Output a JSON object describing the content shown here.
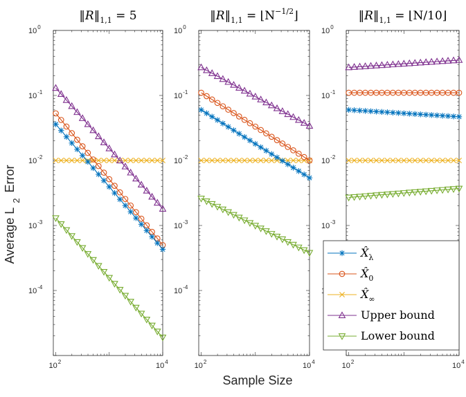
{
  "chart_data": {
    "type": "line",
    "xlabel": "Sample Size",
    "ylabel_main": "Average L",
    "ylabel_sub": "2",
    "ylabel_end": "Error",
    "x_log": true,
    "y_log": true,
    "xlim": [
      90,
      10000
    ],
    "ylim": [
      1e-05,
      1
    ],
    "x_ticks": [
      {
        "value": 100,
        "base": "10",
        "exp": "2"
      },
      {
        "value": 10000,
        "base": "10",
        "exp": "4"
      }
    ],
    "y_ticks": [
      {
        "value": 1,
        "base": "10",
        "exp": "0"
      },
      {
        "value": 0.1,
        "base": "10",
        "exp": "-1"
      },
      {
        "value": 0.01,
        "base": "10",
        "exp": "-2"
      },
      {
        "value": 0.001,
        "base": "10",
        "exp": "-3"
      },
      {
        "value": 0.0001,
        "base": "10",
        "exp": "-4"
      }
    ],
    "colors": {
      "x_lambda": "#0072BD",
      "x_0": "#D95319",
      "x_inf": "#EDB120",
      "upper": "#7E2F8E",
      "lower": "#77AC30"
    },
    "legend": [
      {
        "key": "x_lambda",
        "label": "X̂",
        "sub": "λ",
        "marker": "star"
      },
      {
        "key": "x_0",
        "label": "X̂",
        "sub": "0",
        "marker": "circle"
      },
      {
        "key": "x_inf",
        "label": "X̂",
        "sub": "∞",
        "marker": "x"
      },
      {
        "key": "upper",
        "label": "Upper bound",
        "sub": "",
        "marker": "triangle-up"
      },
      {
        "key": "lower",
        "label": "Lower bound",
        "sub": "",
        "marker": "triangle-down"
      }
    ],
    "panels": [
      {
        "title_a": "‖R‖",
        "title_sub": "1,1",
        "title_b": " = 5",
        "title_sup": "",
        "title_c": "",
        "series": {
          "x_lambda": {
            "start": 0.036,
            "end": 0.00043
          },
          "x_0": {
            "start": 0.053,
            "end": 0.0005
          },
          "x_inf": {
            "start": 0.01,
            "end": 0.01
          },
          "upper": {
            "start": 0.13,
            "end": 0.0018
          },
          "lower": {
            "start": 0.0013,
            "end": 1.9e-05
          }
        }
      },
      {
        "title_a": "‖R‖",
        "title_sub": "1,1",
        "title_b": " = ⌊N",
        "title_sup": "−1/2",
        "title_c": "⌋",
        "series": {
          "x_lambda": {
            "start": 0.06,
            "end": 0.0054
          },
          "x_0": {
            "start": 0.11,
            "end": 0.01
          },
          "x_inf": {
            "start": 0.01,
            "end": 0.01
          },
          "upper": {
            "start": 0.27,
            "end": 0.034
          },
          "lower": {
            "start": 0.0026,
            "end": 0.00038
          }
        }
      },
      {
        "title_a": "‖R‖",
        "title_sub": "1,1",
        "title_b": " = ⌊N/10⌋",
        "title_sup": "",
        "title_c": "",
        "series": {
          "x_lambda": {
            "start": 0.06,
            "end": 0.047
          },
          "x_0": {
            "start": 0.11,
            "end": 0.11
          },
          "x_inf": {
            "start": 0.01,
            "end": 0.01
          },
          "upper": {
            "start": 0.27,
            "end": 0.35
          },
          "lower": {
            "start": 0.0027,
            "end": 0.0037
          }
        }
      }
    ],
    "points_per_series": 21
  }
}
